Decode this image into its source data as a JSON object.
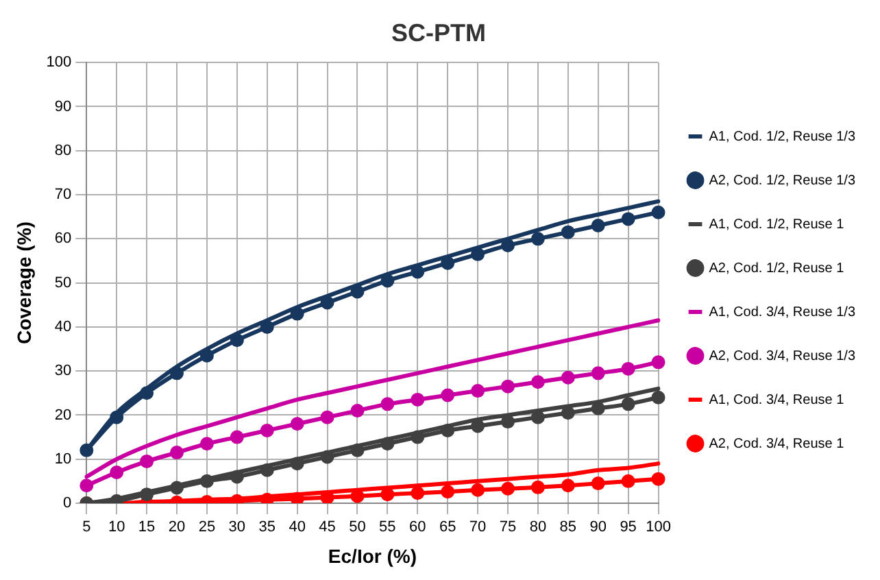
{
  "chart_data": {
    "type": "line",
    "title": "SC-PTM",
    "xlabel": "Ec/Ior (%)",
    "ylabel": "Coverage (%)",
    "categories": [
      "5",
      "10",
      "15",
      "20",
      "25",
      "30",
      "35",
      "40",
      "45",
      "50",
      "55",
      "60",
      "65",
      "70",
      "75",
      "80",
      "85",
      "90",
      "95",
      "100"
    ],
    "ylim": [
      0,
      100
    ],
    "yticks": [
      0,
      10,
      20,
      30,
      40,
      50,
      60,
      70,
      80,
      90,
      100
    ],
    "grid": true,
    "legend": "right",
    "line_style": "solid",
    "series": [
      {
        "name": "A1, Cod. 1/2, Reuse 1/3",
        "color": "#17375e",
        "marker": "none",
        "values": [
          12,
          20.5,
          26,
          31,
          35,
          38.5,
          41.5,
          44.5,
          47,
          49.5,
          52,
          54,
          56,
          58,
          60,
          62,
          64,
          65.5,
          67,
          68.5
        ]
      },
      {
        "name": "A2, Cod. 1/2, Reuse 1/3",
        "color": "#17375e",
        "marker": "circle",
        "values": [
          12,
          19.5,
          25,
          29.5,
          33.5,
          37,
          40,
          43,
          45.5,
          48,
          50.5,
          52.5,
          54.5,
          56.5,
          58.5,
          60,
          61.5,
          63,
          64.5,
          66
        ]
      },
      {
        "name": "A1, Cod. 1/2, Reuse 1",
        "color": "#404040",
        "marker": "none",
        "values": [
          0,
          1,
          2.5,
          4,
          5.5,
          7,
          8.5,
          10,
          11.5,
          13,
          14.5,
          16,
          17.5,
          19,
          20,
          21,
          22,
          23,
          24.5,
          26
        ]
      },
      {
        "name": "A2, Cod. 1/2, Reuse 1",
        "color": "#404040",
        "marker": "circle",
        "values": [
          0,
          0.5,
          2,
          3.5,
          5,
          6,
          7.5,
          9,
          10.5,
          12,
          13.5,
          15,
          16.5,
          17.5,
          18.5,
          19.5,
          20.5,
          21.5,
          22.5,
          24
        ]
      },
      {
        "name": "A1, Cod. 3/4, Reuse 1/3",
        "color": "#c800a1",
        "marker": "none",
        "values": [
          6,
          10,
          13,
          15.5,
          17.5,
          19.5,
          21.5,
          23.5,
          25,
          26.5,
          28,
          29.5,
          31,
          32.5,
          34,
          35.5,
          37,
          38.5,
          40,
          41.5
        ]
      },
      {
        "name": "A2, Cod. 3/4, Reuse 1/3",
        "color": "#c800a1",
        "marker": "circle",
        "values": [
          4,
          7,
          9.5,
          11.5,
          13.5,
          15,
          16.5,
          18,
          19.5,
          21,
          22.5,
          23.5,
          24.5,
          25.5,
          26.5,
          27.5,
          28.5,
          29.5,
          30.5,
          32
        ]
      },
      {
        "name": "A1, Cod. 3/4, Reuse 1",
        "color": "#ff0000",
        "marker": "none",
        "values": [
          0,
          0,
          0.3,
          0.5,
          0.8,
          1,
          1.5,
          2,
          2.5,
          3,
          3.5,
          4,
          4.5,
          5,
          5.5,
          6,
          6.5,
          7.5,
          8,
          9
        ]
      },
      {
        "name": "A2, Cod. 3/4, Reuse 1",
        "color": "#ff0000",
        "marker": "circle",
        "values": [
          0,
          0,
          0,
          0.2,
          0.3,
          0.5,
          0.8,
          1,
          1.3,
          1.6,
          2,
          2.3,
          2.6,
          3,
          3.3,
          3.6,
          4,
          4.5,
          5,
          5.5
        ]
      }
    ]
  }
}
